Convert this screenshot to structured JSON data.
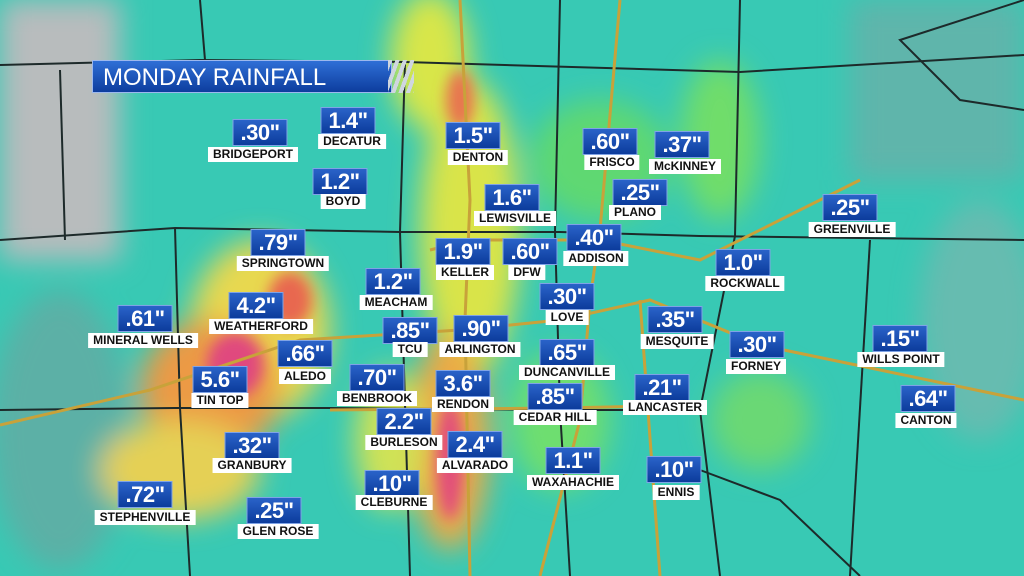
{
  "title": "MONDAY RAINFALL",
  "locations": [
    {
      "value": ".30\"",
      "name": "BRIDGEPORT"
    },
    {
      "value": "1.4\"",
      "name": "DECATUR"
    },
    {
      "value": "1.2\"",
      "name": "BOYD"
    },
    {
      "value": "1.5\"",
      "name": "DENTON"
    },
    {
      "value": ".60\"",
      "name": "FRISCO"
    },
    {
      "value": ".37\"",
      "name": "McKINNEY"
    },
    {
      "value": ".25\"",
      "name": "PLANO"
    },
    {
      "value": "1.6\"",
      "name": "LEWISVILLE"
    },
    {
      "value": ".79\"",
      "name": "SPRINGTOWN"
    },
    {
      "value": "1.9\"",
      "name": "KELLER"
    },
    {
      "value": ".60\"",
      "name": "DFW"
    },
    {
      "value": ".40\"",
      "name": "ADDISON"
    },
    {
      "value": ".25\"",
      "name": "GREENVILLE"
    },
    {
      "value": "1.0\"",
      "name": "ROCKWALL"
    },
    {
      "value": "1.2\"",
      "name": "MEACHAM"
    },
    {
      "value": ".30\"",
      "name": "LOVE"
    },
    {
      "value": ".61\"",
      "name": "MINERAL WELLS"
    },
    {
      "value": "4.2\"",
      "name": "WEATHERFORD"
    },
    {
      "value": ".85\"",
      "name": "TCU"
    },
    {
      "value": ".90\"",
      "name": "ARLINGTON"
    },
    {
      "value": ".35\"",
      "name": "MESQUITE"
    },
    {
      "value": ".15\"",
      "name": "WILLS POINT"
    },
    {
      "value": ".66\"",
      "name": "ALEDO"
    },
    {
      "value": ".65\"",
      "name": "DUNCANVILLE"
    },
    {
      "value": ".30\"",
      "name": "FORNEY"
    },
    {
      "value": "5.6\"",
      "name": "TIN TOP"
    },
    {
      "value": ".70\"",
      "name": "BENBROOK"
    },
    {
      "value": "3.6\"",
      "name": "RENDON"
    },
    {
      "value": ".85\"",
      "name": "CEDAR HILL"
    },
    {
      "value": ".21\"",
      "name": "LANCASTER"
    },
    {
      "value": ".64\"",
      "name": "CANTON"
    },
    {
      "value": "2.2\"",
      "name": "BURLESON"
    },
    {
      "value": "2.4\"",
      "name": "ALVARADO"
    },
    {
      "value": ".32\"",
      "name": "GRANBURY"
    },
    {
      "value": "1.1\"",
      "name": "WAXAHACHIE"
    },
    {
      "value": ".10\"",
      "name": "ENNIS"
    },
    {
      "value": ".72\"",
      "name": "STEPHENVILLE"
    },
    {
      "value": ".10\"",
      "name": "CLEBURNE"
    },
    {
      "value": ".25\"",
      "name": "GLEN ROSE"
    }
  ]
}
